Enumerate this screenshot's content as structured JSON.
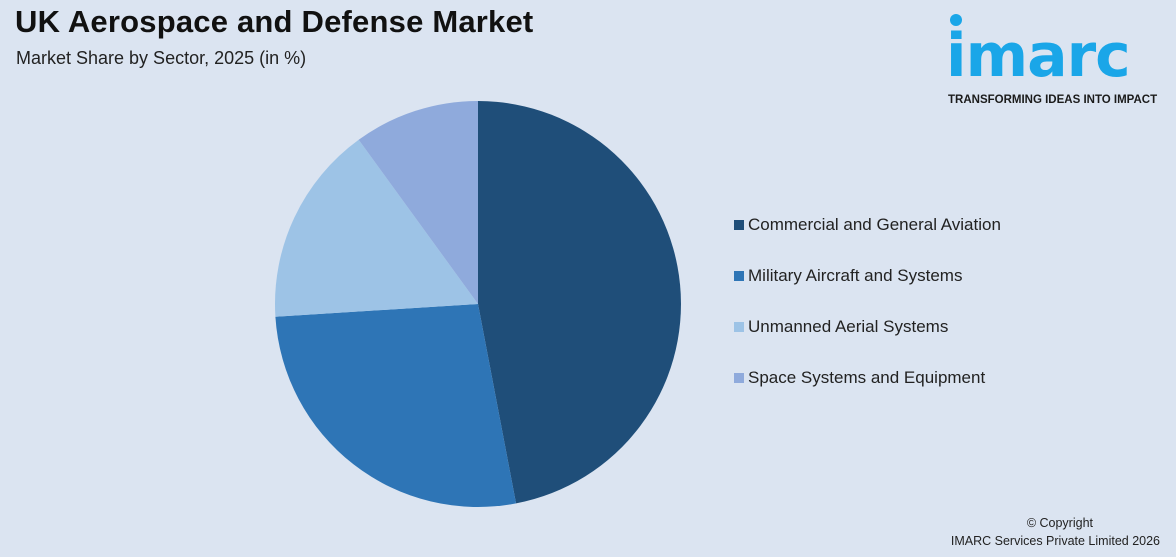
{
  "header": {
    "title": "UK Aerospace and Defense Market",
    "subtitle": "Market Share by Sector, 2025 (in %)"
  },
  "logo": {
    "word": "imarc",
    "tagline": "TRANSFORMING IDEAS INTO IMPACT",
    "color": "#1aa6e8"
  },
  "chart_data": {
    "type": "pie",
    "title": "UK Aerospace and Defense Market",
    "subtitle": "Market Share by Sector, 2025 (in %)",
    "legend_position": "right",
    "start": "12 o'clock",
    "direction": "clockwise",
    "slices": [
      {
        "label": "Commercial and General Aviation",
        "value": 47,
        "color": "#1f4e79"
      },
      {
        "label": "Military Aircraft and Systems",
        "value": 27,
        "color": "#2e75b6"
      },
      {
        "label": "Unmanned Aerial Systems",
        "value": 16,
        "color": "#9dc3e6"
      },
      {
        "label": "Space Systems and Equipment",
        "value": 10,
        "color": "#8faadc"
      }
    ]
  },
  "footer": {
    "copyright_line1": "© Copyright",
    "copyright_line2": "IMARC Services Private Limited 2026"
  }
}
